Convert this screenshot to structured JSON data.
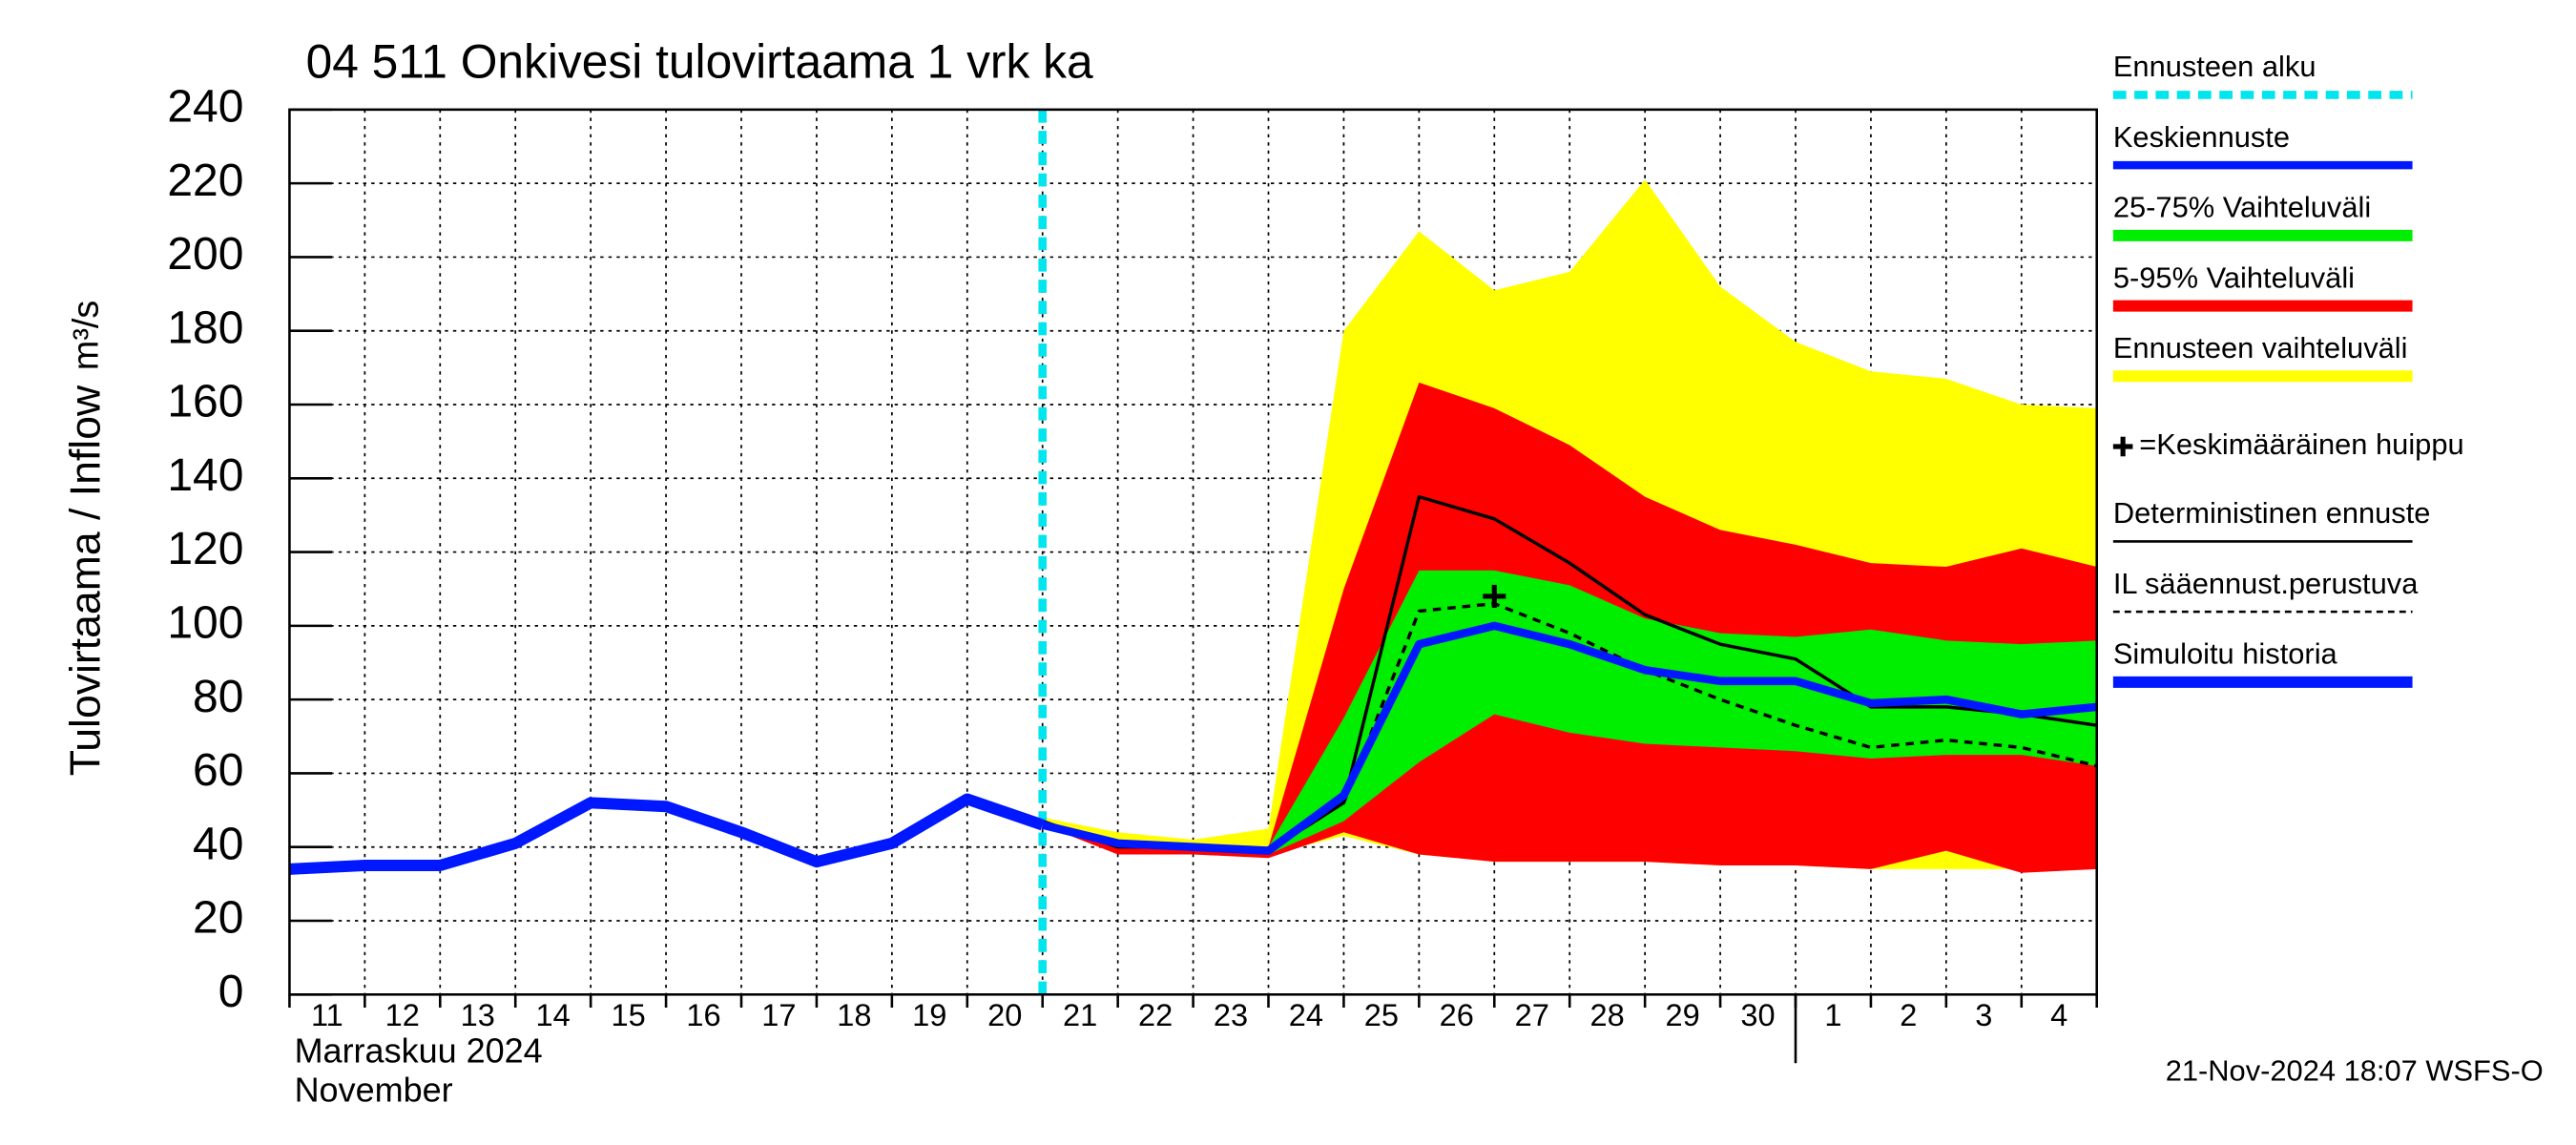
{
  "chart_data": {
    "type": "line",
    "title": "04 511 Onkivesi tulovirtaama 1 vrk ka",
    "y_label": "Tulovirtaama / Inflow",
    "y_unit": "m³/s",
    "x_label": "Marraskuu 2024",
    "x_label_2": "November",
    "footer": "21-Nov-2024 18:07 WSFS-O",
    "categories": [
      "11",
      "12",
      "13",
      "14",
      "15",
      "16",
      "17",
      "18",
      "19",
      "20",
      "21",
      "22",
      "23",
      "24",
      "25",
      "26",
      "27",
      "28",
      "29",
      "30",
      "1",
      "2",
      "3",
      "4",
      null
    ],
    "month_break": 20,
    "ylim": [
      0,
      240
    ],
    "yticks": [
      0,
      20,
      40,
      60,
      80,
      100,
      120,
      140,
      160,
      180,
      200,
      220,
      240
    ],
    "grid": true,
    "series": [
      {
        "name": "Ennusteen alku",
        "kind": "vline",
        "color": "#00e5ee",
        "x": 10
      },
      {
        "name": "Keskiennuste",
        "kind": "line",
        "color": "#0018ff",
        "width": 5,
        "values": [
          null,
          null,
          null,
          null,
          null,
          null,
          null,
          null,
          null,
          null,
          46,
          41,
          40,
          39,
          54,
          95,
          100,
          95,
          88,
          85,
          85,
          79,
          80,
          76,
          78
        ]
      },
      {
        "name": "25-75% Vaihteluväli",
        "kind": "band",
        "color": "#00ee00",
        "low": [
          null,
          null,
          null,
          null,
          null,
          null,
          null,
          null,
          null,
          null,
          46,
          40,
          40,
          38,
          47,
          63,
          76,
          71,
          68,
          67,
          66,
          64,
          65,
          65,
          62
        ],
        "high": [
          null,
          null,
          null,
          null,
          null,
          null,
          null,
          null,
          null,
          null,
          46,
          41,
          40,
          40,
          75,
          115,
          115,
          111,
          102,
          98,
          97,
          99,
          96,
          95,
          96
        ]
      },
      {
        "name": "5-95% Vaihteluväli",
        "kind": "band",
        "color": "#ff0000",
        "low": [
          null,
          null,
          null,
          null,
          null,
          null,
          null,
          null,
          null,
          null,
          46,
          38,
          38,
          37,
          44,
          38,
          36,
          36,
          36,
          35,
          35,
          34,
          39,
          33,
          34
        ],
        "high": [
          null,
          null,
          null,
          null,
          null,
          null,
          null,
          null,
          null,
          null,
          47,
          42,
          41,
          40,
          110,
          166,
          159,
          149,
          135,
          126,
          122,
          117,
          116,
          121,
          116
        ]
      },
      {
        "name": "Ennusteen vaihteluväli",
        "kind": "band",
        "color": "#ffff00",
        "low": [
          null,
          null,
          null,
          null,
          null,
          null,
          null,
          null,
          null,
          null,
          46,
          39,
          39,
          38,
          43,
          38,
          36,
          36,
          36,
          35,
          35,
          34,
          34,
          34,
          34
        ],
        "high": [
          null,
          null,
          null,
          null,
          null,
          null,
          null,
          null,
          null,
          null,
          48,
          44,
          42,
          45,
          180,
          207,
          191,
          196,
          221,
          192,
          177,
          169,
          167,
          160,
          159
        ]
      },
      {
        "name": "=Keskimääräinen huippu",
        "kind": "marker",
        "color": "#000000",
        "x": 16,
        "value": 108
      },
      {
        "name": "Deterministinen ennuste",
        "kind": "line",
        "color": "#000000",
        "width": 2,
        "values": [
          null,
          null,
          null,
          null,
          null,
          null,
          null,
          null,
          null,
          53,
          47,
          40,
          40,
          39,
          52,
          135,
          129,
          117,
          103,
          95,
          91,
          78,
          78,
          76,
          73
        ]
      },
      {
        "name": "IL sääennust.perustuva",
        "kind": "line",
        "color": "#000000",
        "width": 2,
        "dash": true,
        "values": [
          null,
          null,
          null,
          null,
          null,
          null,
          null,
          null,
          null,
          null,
          null,
          null,
          null,
          39,
          52,
          104,
          106,
          98,
          88,
          80,
          73,
          67,
          69,
          67,
          62
        ]
      },
      {
        "name": "Simuloitu historia",
        "kind": "line",
        "color": "#0018ff",
        "width": 7,
        "values": [
          34,
          35,
          35,
          41,
          52,
          51,
          44,
          36,
          41,
          53,
          46,
          null,
          null,
          null,
          null,
          null,
          null,
          null,
          null,
          null,
          null,
          null,
          null,
          null,
          null
        ]
      }
    ]
  }
}
